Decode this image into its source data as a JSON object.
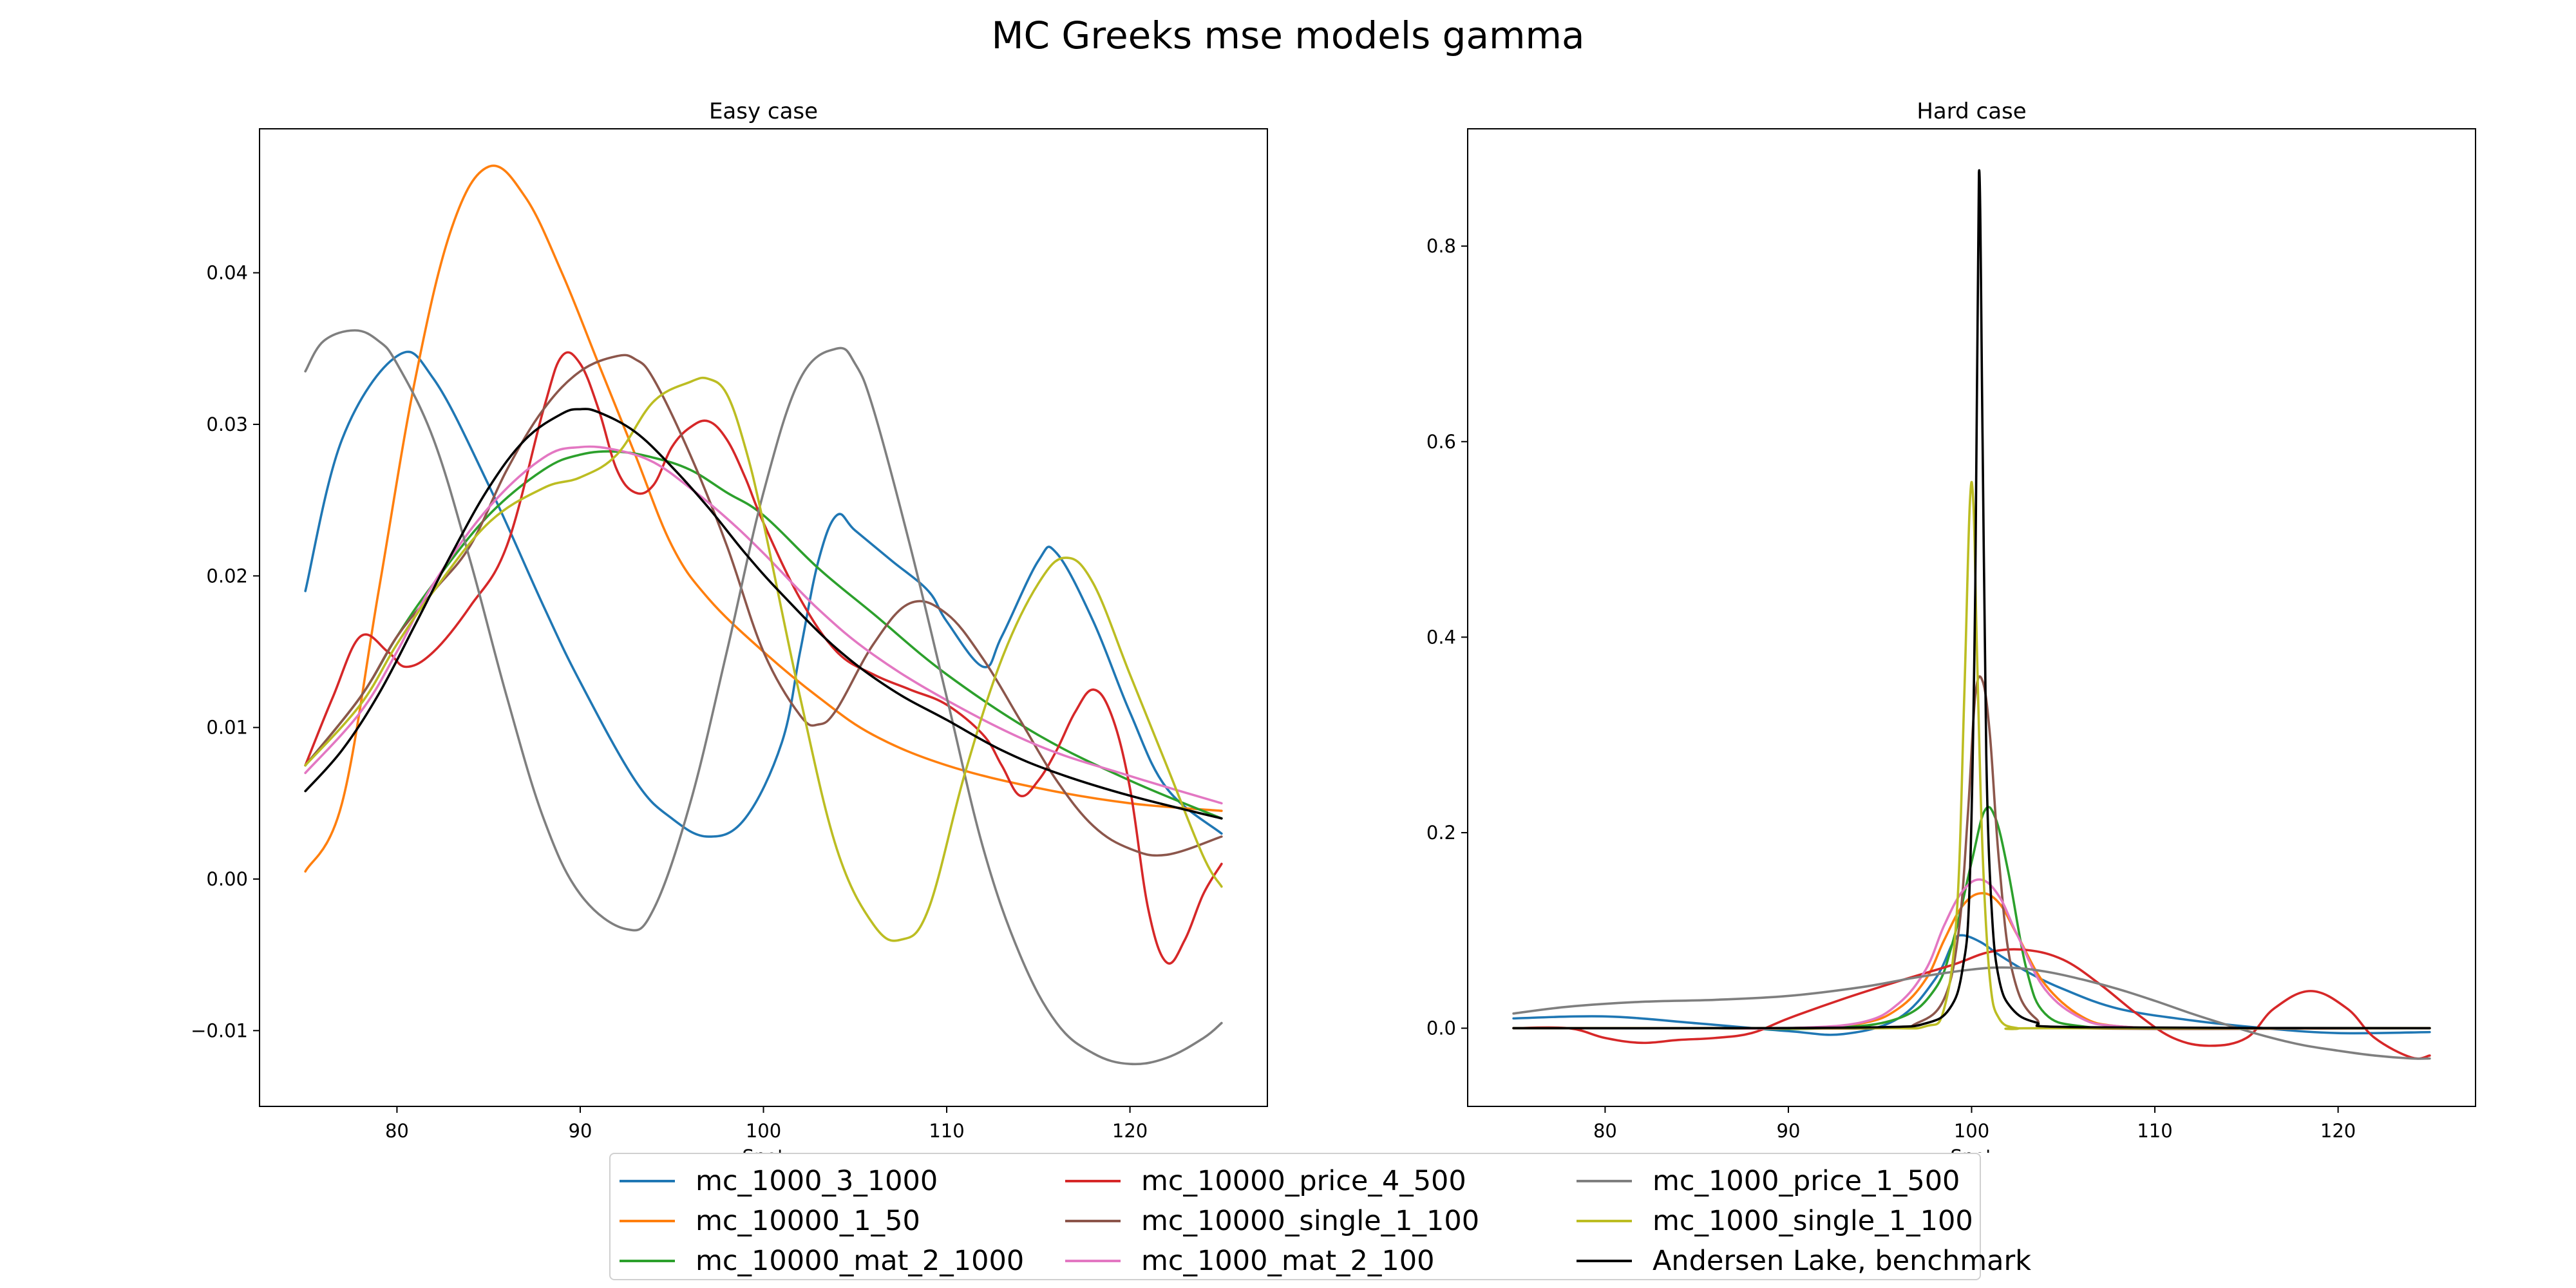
{
  "figure": {
    "title": "MC Greeks mse models gamma"
  },
  "chart_data": [
    {
      "type": "line",
      "title": "Easy case",
      "xlabel": "Spot",
      "ylabel": "",
      "xlim": [
        72.5,
        127.5
      ],
      "ylim": [
        -0.015,
        0.0495
      ],
      "xticks": [
        80,
        90,
        100,
        110,
        120
      ],
      "yticks": [
        -0.01,
        0.0,
        0.01,
        0.02,
        0.03,
        0.04
      ],
      "ytick_labels": [
        "−0.01",
        "0.00",
        "0.01",
        "0.02",
        "0.03",
        "0.04"
      ],
      "grid": false,
      "series": [
        {
          "name": "mc_1000_3_1000",
          "color": "#1f77b4",
          "x": [
            75,
            77,
            80,
            82,
            85,
            88,
            90,
            93,
            95,
            97,
            99,
            101,
            102,
            103,
            104,
            105,
            107,
            109,
            110,
            112,
            113,
            115,
            116,
            118,
            120,
            122,
            125
          ],
          "y": [
            0.019,
            0.029,
            0.0345,
            0.033,
            0.026,
            0.018,
            0.013,
            0.0065,
            0.004,
            0.0028,
            0.004,
            0.009,
            0.015,
            0.021,
            0.024,
            0.023,
            0.021,
            0.019,
            0.017,
            0.014,
            0.016,
            0.021,
            0.0215,
            0.017,
            0.011,
            0.006,
            0.003
          ]
        },
        {
          "name": "mc_10000_1_50",
          "color": "#ff7f0e",
          "x": [
            75,
            77,
            79,
            81,
            83,
            85,
            87,
            89,
            91,
            93,
            95,
            97,
            100,
            103,
            106,
            110,
            115,
            120,
            125
          ],
          "y": [
            0.0005,
            0.005,
            0.019,
            0.033,
            0.043,
            0.047,
            0.045,
            0.04,
            0.034,
            0.028,
            0.022,
            0.0185,
            0.015,
            0.012,
            0.0095,
            0.0075,
            0.006,
            0.005,
            0.0045
          ]
        },
        {
          "name": "mc_10000_mat_2_1000",
          "color": "#2ca02c",
          "x": [
            75,
            78,
            80,
            82,
            85,
            88,
            90,
            92,
            94,
            96,
            98,
            100,
            103,
            106,
            110,
            115,
            120,
            125
          ],
          "y": [
            0.0075,
            0.012,
            0.016,
            0.0195,
            0.024,
            0.027,
            0.028,
            0.0282,
            0.0278,
            0.027,
            0.0255,
            0.024,
            0.0205,
            0.0175,
            0.0135,
            0.0095,
            0.0065,
            0.004
          ]
        },
        {
          "name": "mc_10000_price_4_500",
          "color": "#d62728",
          "x": [
            75,
            76.5,
            78,
            79.5,
            80.5,
            82,
            84,
            86,
            88,
            89,
            90,
            91,
            92,
            93,
            94,
            95,
            96,
            97,
            98,
            99,
            100,
            102,
            104,
            106,
            108,
            110,
            112,
            113,
            114,
            115,
            116,
            117,
            118,
            119,
            120,
            121,
            122,
            123,
            124,
            125
          ],
          "y": [
            0.0075,
            0.012,
            0.016,
            0.015,
            0.014,
            0.015,
            0.018,
            0.022,
            0.031,
            0.0345,
            0.034,
            0.031,
            0.027,
            0.0255,
            0.026,
            0.0285,
            0.0298,
            0.0302,
            0.029,
            0.0265,
            0.0235,
            0.0185,
            0.015,
            0.0135,
            0.0125,
            0.0115,
            0.0095,
            0.0075,
            0.0055,
            0.0065,
            0.0085,
            0.011,
            0.0125,
            0.0108,
            0.006,
            -0.002,
            -0.0055,
            -0.004,
            -0.001,
            0.001
          ]
        },
        {
          "name": "mc_10000_single_1_100",
          "color": "#8c564b",
          "x": [
            75,
            78,
            80,
            82,
            84,
            86,
            88,
            90,
            92,
            93,
            94,
            96,
            98,
            100,
            102,
            103,
            104,
            106,
            108,
            110,
            112,
            114,
            116,
            118,
            120,
            122,
            125
          ],
          "y": [
            0.0075,
            0.012,
            0.016,
            0.019,
            0.022,
            0.027,
            0.031,
            0.0335,
            0.0345,
            0.0343,
            0.033,
            0.028,
            0.022,
            0.015,
            0.0108,
            0.0102,
            0.0112,
            0.0155,
            0.0182,
            0.0175,
            0.0145,
            0.0105,
            0.0065,
            0.0035,
            0.002,
            0.0016,
            0.0028
          ]
        },
        {
          "name": "mc_1000_mat_2_100",
          "color": "#e377c2",
          "x": [
            75,
            78,
            80,
            82,
            85,
            88,
            90,
            92,
            94,
            96,
            98,
            100,
            103,
            106,
            110,
            115,
            120,
            125
          ],
          "y": [
            0.007,
            0.011,
            0.015,
            0.0195,
            0.0245,
            0.0278,
            0.0285,
            0.0283,
            0.0275,
            0.0258,
            0.0238,
            0.0215,
            0.0178,
            0.0148,
            0.0118,
            0.0088,
            0.0068,
            0.005
          ]
        },
        {
          "name": "mc_1000_price_1_500",
          "color": "#7f7f7f",
          "x": [
            75,
            76,
            77.7,
            79,
            80,
            82,
            84,
            86,
            88,
            90,
            92.5,
            94,
            96,
            98,
            100,
            102,
            104,
            105,
            106,
            108,
            110,
            112,
            114,
            116,
            118,
            120,
            122,
            124,
            125
          ],
          "y": [
            0.0335,
            0.0355,
            0.0362,
            0.0355,
            0.034,
            0.029,
            0.021,
            0.012,
            0.004,
            -0.001,
            -0.0033,
            -0.002,
            0.005,
            0.015,
            0.0255,
            0.033,
            0.035,
            0.034,
            0.031,
            0.022,
            0.012,
            0.002,
            -0.005,
            -0.0095,
            -0.0115,
            -0.0122,
            -0.0118,
            -0.0105,
            -0.0095
          ]
        },
        {
          "name": "mc_1000_single_1_100",
          "color": "#bcbd22",
          "x": [
            75,
            78,
            80,
            82,
            85,
            88,
            90,
            92,
            94,
            96,
            97,
            98,
            99,
            100,
            102,
            104,
            106,
            107.5,
            109,
            111,
            113,
            115,
            116.5,
            118,
            120,
            122,
            124,
            125
          ],
          "y": [
            0.0075,
            0.0115,
            0.0155,
            0.019,
            0.0235,
            0.0258,
            0.0265,
            0.028,
            0.0315,
            0.0328,
            0.033,
            0.032,
            0.0285,
            0.0235,
            0.012,
            0.002,
            -0.003,
            -0.004,
            -0.002,
            0.007,
            0.0145,
            0.0195,
            0.0212,
            0.0195,
            0.0135,
            0.0075,
            0.0015,
            -0.0005
          ]
        },
        {
          "name": "Andersen Lake, benchmark",
          "color": "#000000",
          "x": [
            75,
            77,
            79,
            81,
            83,
            85,
            87,
            89,
            90,
            91,
            93,
            95,
            97,
            99,
            101,
            104,
            107,
            110,
            113,
            116,
            120,
            125
          ],
          "y": [
            0.0058,
            0.0085,
            0.0122,
            0.0168,
            0.0215,
            0.0258,
            0.029,
            0.0307,
            0.031,
            0.0308,
            0.0295,
            0.0272,
            0.0245,
            0.0215,
            0.0188,
            0.0152,
            0.0125,
            0.0105,
            0.0085,
            0.007,
            0.0055,
            0.004
          ]
        }
      ]
    },
    {
      "type": "line",
      "title": "Hard case",
      "xlabel": "Spot",
      "ylabel": "",
      "xlim": [
        72.5,
        127.5
      ],
      "ylim": [
        -0.08,
        0.92
      ],
      "xticks": [
        80,
        90,
        100,
        110,
        120
      ],
      "yticks": [
        0.0,
        0.2,
        0.4,
        0.6,
        0.8
      ],
      "ytick_labels": [
        "0.0",
        "0.2",
        "0.4",
        "0.6",
        "0.8"
      ],
      "grid": false,
      "series": [
        {
          "name": "mc_1000_3_1000",
          "color": "#1f77b4",
          "x": [
            75,
            80,
            85,
            90,
            93,
            96,
            98,
            99,
            99.5,
            100.5,
            101.5,
            103,
            105,
            108,
            112,
            116,
            120,
            125
          ],
          "y": [
            0.01,
            0.012,
            0.005,
            -0.003,
            -0.006,
            0.01,
            0.05,
            0.088,
            0.095,
            0.088,
            0.075,
            0.058,
            0.04,
            0.02,
            0.008,
            0.0,
            -0.005,
            -0.004
          ]
        },
        {
          "name": "mc_10000_1_50",
          "color": "#ff7f0e",
          "x": [
            75,
            85,
            90,
            94,
            96,
            97.5,
            98.5,
            99.5,
            100.5,
            101.5,
            102.5,
            104,
            106,
            108,
            112,
            118,
            125
          ],
          "y": [
            0.0,
            0.0,
            0.0,
            0.005,
            0.02,
            0.05,
            0.09,
            0.125,
            0.138,
            0.128,
            0.095,
            0.045,
            0.012,
            0.002,
            0.0,
            0.0,
            0.0
          ]
        },
        {
          "name": "mc_10000_mat_2_1000",
          "color": "#2ca02c",
          "x": [
            75,
            85,
            92,
            96,
            98,
            99,
            100,
            100.7,
            101.3,
            102,
            103,
            104,
            106,
            110,
            125
          ],
          "y": [
            0.0,
            0.0,
            0.0,
            0.01,
            0.04,
            0.09,
            0.17,
            0.222,
            0.215,
            0.16,
            0.06,
            0.015,
            0.002,
            0.0,
            0.0
          ]
        },
        {
          "name": "mc_10000_price_4_500",
          "color": "#d62728",
          "x": [
            75,
            78,
            80,
            82,
            84,
            86,
            88,
            90,
            93,
            96,
            99,
            101,
            103,
            105,
            107,
            109,
            111,
            113,
            115,
            116.5,
            118.5,
            120.5,
            122,
            124,
            125
          ],
          "y": [
            0.0,
            0.0,
            -0.01,
            -0.015,
            -0.012,
            -0.01,
            -0.005,
            0.01,
            0.03,
            0.048,
            0.065,
            0.078,
            0.08,
            0.07,
            0.045,
            0.015,
            -0.01,
            -0.018,
            -0.01,
            0.02,
            0.038,
            0.02,
            -0.01,
            -0.03,
            -0.028
          ]
        },
        {
          "name": "mc_10000_single_1_100",
          "color": "#8c564b",
          "x": [
            75,
            85,
            95,
            97,
            98.5,
            99.3,
            99.8,
            100.2,
            100.6,
            101,
            101.5,
            102.2,
            103.5,
            106,
            125
          ],
          "y": [
            0.0,
            0.0,
            0.0,
            0.005,
            0.03,
            0.1,
            0.22,
            0.34,
            0.355,
            0.3,
            0.17,
            0.06,
            0.01,
            0.0,
            0.0
          ]
        },
        {
          "name": "mc_1000_mat_2_100",
          "color": "#e377c2",
          "x": [
            75,
            85,
            90,
            94,
            96,
            97.5,
            98.5,
            99.5,
            100.5,
            101.5,
            102.5,
            104,
            106,
            108,
            112,
            125
          ],
          "y": [
            0.0,
            0.0,
            0.0,
            0.006,
            0.025,
            0.06,
            0.105,
            0.14,
            0.152,
            0.135,
            0.095,
            0.04,
            0.01,
            0.002,
            0.0,
            0.0
          ]
        },
        {
          "name": "mc_1000_price_1_500",
          "color": "#7f7f7f",
          "x": [
            75,
            78,
            82,
            86,
            90,
            94,
            97,
            100,
            102,
            104,
            106,
            108,
            110,
            112,
            114,
            116,
            118,
            120,
            122,
            124,
            125
          ],
          "y": [
            0.015,
            0.022,
            0.027,
            0.029,
            0.033,
            0.042,
            0.052,
            0.06,
            0.062,
            0.058,
            0.05,
            0.04,
            0.028,
            0.015,
            0.003,
            -0.008,
            -0.017,
            -0.023,
            -0.028,
            -0.031,
            -0.031
          ]
        },
        {
          "name": "mc_1000_single_1_100",
          "color": "#bcbd22",
          "x": [
            75,
            85,
            95,
            97.5,
            98.5,
            99.2,
            99.6,
            99.9,
            100.1,
            100.3,
            100.6,
            101,
            101.5,
            102.5,
            104,
            125
          ],
          "y": [
            0.0,
            0.0,
            0.0,
            0.002,
            0.02,
            0.12,
            0.34,
            0.535,
            0.535,
            0.38,
            0.18,
            0.05,
            0.01,
            0.0,
            0.0,
            0.0
          ]
        },
        {
          "name": "Andersen Lake, benchmark",
          "color": "#000000",
          "x": [
            75,
            85,
            95,
            97.5,
            98.8,
            99.5,
            99.9,
            100.2,
            100.4,
            100.6,
            100.8,
            101.1,
            101.5,
            102.2,
            103.5,
            106,
            125
          ],
          "y": [
            0.0,
            0.0,
            0.001,
            0.005,
            0.02,
            0.06,
            0.15,
            0.45,
            0.875,
            0.6,
            0.28,
            0.12,
            0.05,
            0.02,
            0.006,
            0.001,
            0.0
          ]
        }
      ]
    }
  ]
}
